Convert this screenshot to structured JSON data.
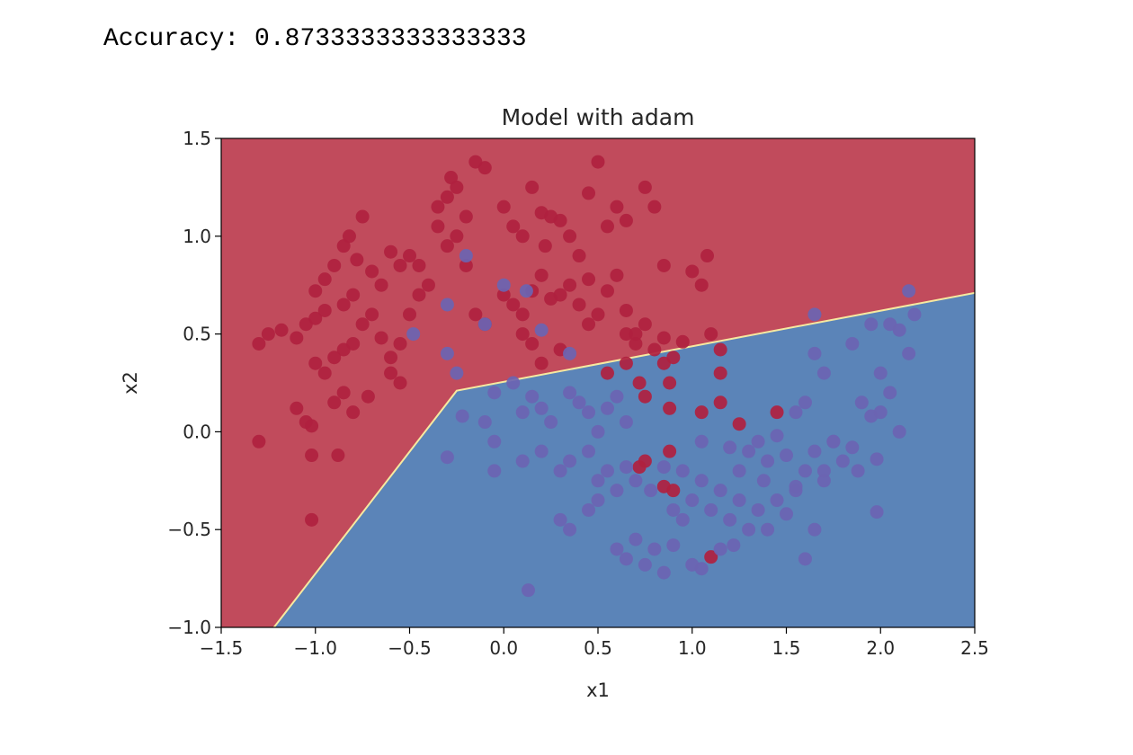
{
  "output": {
    "accuracy_label": "Accuracy:",
    "accuracy_value": "0.8733333333333333"
  },
  "colors": {
    "red_region": "#c14b5c",
    "blue_region": "#5b84b8",
    "red_point": "#b0213f",
    "blue_point": "#6b64b2",
    "boundary": "#f6e9a0"
  },
  "chart_data": {
    "type": "scatter",
    "title": "Model with adam",
    "xlabel": "x1",
    "ylabel": "x2",
    "xlim": [
      -1.5,
      2.5
    ],
    "ylim": [
      -1.0,
      1.5
    ],
    "xticks": [
      "−1.5",
      "−1.0",
      "−0.5",
      "0.0",
      "0.5",
      "1.0",
      "1.5",
      "2.0",
      "2.5"
    ],
    "yticks": [
      "−1.0",
      "−0.5",
      "0.0",
      "0.5",
      "1.0",
      "1.5"
    ],
    "xtick_values": [
      -1.5,
      -1.0,
      -0.5,
      0.0,
      0.5,
      1.0,
      1.5,
      2.0,
      2.5
    ],
    "ytick_values": [
      -1.0,
      -0.5,
      0.0,
      0.5,
      1.0,
      1.5
    ],
    "grid": false,
    "decision_boundary": [
      [
        -1.22,
        -1.0
      ],
      [
        -0.25,
        0.21
      ],
      [
        2.5,
        0.71
      ]
    ],
    "series": [
      {
        "class": 0,
        "color": "#b0213f",
        "points": [
          [
            -1.3,
            0.45
          ],
          [
            -1.25,
            0.5
          ],
          [
            -1.18,
            0.52
          ],
          [
            -1.1,
            0.48
          ],
          [
            -1.05,
            0.55
          ],
          [
            -1.0,
            0.58
          ],
          [
            -0.95,
            0.62
          ],
          [
            -0.9,
            0.85
          ],
          [
            -0.85,
            0.95
          ],
          [
            -0.82,
            1.0
          ],
          [
            -0.78,
            0.88
          ],
          [
            -0.75,
            1.1
          ],
          [
            -0.7,
            0.82
          ],
          [
            -0.65,
            0.75
          ],
          [
            -0.6,
            0.92
          ],
          [
            -0.55,
            0.85
          ],
          [
            -0.5,
            0.9
          ],
          [
            -0.45,
            0.85
          ],
          [
            -1.0,
            0.35
          ],
          [
            -0.95,
            0.3
          ],
          [
            -0.9,
            0.38
          ],
          [
            -0.85,
            0.42
          ],
          [
            -0.8,
            0.45
          ],
          [
            -0.75,
            0.55
          ],
          [
            -0.7,
            0.6
          ],
          [
            -0.65,
            0.48
          ],
          [
            -0.6,
            0.38
          ],
          [
            -0.55,
            0.45
          ],
          [
            -0.5,
            0.6
          ],
          [
            -0.45,
            0.7
          ],
          [
            -0.9,
            0.15
          ],
          [
            -0.85,
            0.2
          ],
          [
            -0.8,
            0.1
          ],
          [
            -0.72,
            0.18
          ],
          [
            -0.6,
            0.3
          ],
          [
            -0.55,
            0.25
          ],
          [
            -1.1,
            0.12
          ],
          [
            -1.05,
            0.05
          ],
          [
            -1.02,
            0.03
          ],
          [
            -1.02,
            -0.12
          ],
          [
            -0.88,
            -0.12
          ],
          [
            -1.3,
            -0.05
          ],
          [
            -1.02,
            -0.45
          ],
          [
            -1.0,
            0.72
          ],
          [
            -0.95,
            0.78
          ],
          [
            -0.85,
            0.65
          ],
          [
            -0.8,
            0.7
          ],
          [
            -0.35,
            1.15
          ],
          [
            -0.3,
            1.2
          ],
          [
            -0.28,
            1.3
          ],
          [
            -0.25,
            1.25
          ],
          [
            -0.2,
            1.1
          ],
          [
            -0.15,
            1.38
          ],
          [
            -0.1,
            1.35
          ],
          [
            0.0,
            1.15
          ],
          [
            0.05,
            1.05
          ],
          [
            0.1,
            1.0
          ],
          [
            0.15,
            1.25
          ],
          [
            0.2,
            1.12
          ],
          [
            0.25,
            1.1
          ],
          [
            0.3,
            1.08
          ],
          [
            0.35,
            1.0
          ],
          [
            0.4,
            0.9
          ],
          [
            0.45,
            1.22
          ],
          [
            0.5,
            1.38
          ],
          [
            0.55,
            1.05
          ],
          [
            0.6,
            1.15
          ],
          [
            0.65,
            1.08
          ],
          [
            0.75,
            1.25
          ],
          [
            0.8,
            1.15
          ],
          [
            0.85,
            0.85
          ],
          [
            -0.4,
            0.75
          ],
          [
            -0.3,
            0.95
          ],
          [
            -0.2,
            0.85
          ],
          [
            -0.15,
            0.6
          ],
          [
            -0.1,
            0.55
          ],
          [
            0.0,
            0.7
          ],
          [
            0.05,
            0.65
          ],
          [
            0.1,
            0.6
          ],
          [
            0.15,
            0.72
          ],
          [
            0.2,
            0.8
          ],
          [
            0.25,
            0.68
          ],
          [
            0.3,
            0.7
          ],
          [
            0.35,
            0.75
          ],
          [
            0.4,
            0.65
          ],
          [
            0.45,
            0.55
          ],
          [
            0.5,
            0.6
          ],
          [
            0.55,
            0.72
          ],
          [
            0.6,
            0.8
          ],
          [
            0.65,
            0.5
          ],
          [
            0.7,
            0.45
          ],
          [
            0.75,
            0.55
          ],
          [
            0.8,
            0.42
          ],
          [
            0.85,
            0.48
          ],
          [
            0.9,
            0.38
          ],
          [
            0.95,
            0.46
          ],
          [
            1.0,
            0.82
          ],
          [
            1.05,
            0.75
          ],
          [
            1.08,
            0.9
          ],
          [
            1.1,
            0.5
          ],
          [
            1.15,
            0.42
          ],
          [
            0.1,
            0.5
          ],
          [
            0.15,
            0.45
          ],
          [
            0.2,
            0.35
          ],
          [
            0.3,
            0.42
          ],
          [
            0.65,
            0.62
          ],
          [
            0.7,
            0.5
          ],
          [
            0.55,
            0.3
          ],
          [
            0.65,
            0.35
          ],
          [
            0.72,
            0.25
          ],
          [
            0.75,
            0.18
          ],
          [
            0.85,
            0.35
          ],
          [
            0.88,
            0.25
          ],
          [
            0.88,
            0.12
          ],
          [
            1.05,
            0.1
          ],
          [
            1.15,
            0.15
          ],
          [
            1.15,
            0.3
          ],
          [
            1.25,
            0.04
          ],
          [
            1.45,
            0.1
          ],
          [
            0.72,
            -0.18
          ],
          [
            0.75,
            -0.15
          ],
          [
            0.88,
            -0.1
          ],
          [
            0.85,
            -0.28
          ],
          [
            0.9,
            -0.3
          ],
          [
            1.1,
            -0.64
          ],
          [
            -0.25,
            1.0
          ],
          [
            -0.35,
            1.05
          ],
          [
            0.22,
            0.95
          ],
          [
            0.45,
            0.78
          ]
        ]
      },
      {
        "class": 1,
        "color": "#6b64b2",
        "points": [
          [
            -0.2,
            0.9
          ],
          [
            -0.48,
            0.5
          ],
          [
            -0.3,
            0.65
          ],
          [
            -0.3,
            0.4
          ],
          [
            -0.1,
            0.55
          ],
          [
            0.0,
            0.75
          ],
          [
            0.12,
            0.72
          ],
          [
            0.2,
            0.52
          ],
          [
            0.35,
            0.4
          ],
          [
            1.65,
            0.6
          ],
          [
            2.15,
            0.72
          ],
          [
            -0.25,
            0.3
          ],
          [
            -0.22,
            0.08
          ],
          [
            -0.1,
            0.05
          ],
          [
            -0.05,
            0.2
          ],
          [
            0.05,
            0.25
          ],
          [
            0.1,
            0.1
          ],
          [
            0.15,
            0.18
          ],
          [
            0.2,
            0.12
          ],
          [
            0.25,
            0.05
          ],
          [
            0.35,
            0.2
          ],
          [
            0.4,
            0.15
          ],
          [
            0.45,
            0.1
          ],
          [
            0.5,
            0.0
          ],
          [
            0.55,
            0.12
          ],
          [
            0.6,
            0.18
          ],
          [
            0.65,
            0.05
          ],
          [
            -0.3,
            -0.13
          ],
          [
            -0.05,
            -0.05
          ],
          [
            -0.05,
            -0.2
          ],
          [
            0.1,
            -0.15
          ],
          [
            0.2,
            -0.1
          ],
          [
            0.3,
            -0.2
          ],
          [
            0.35,
            -0.15
          ],
          [
            0.45,
            -0.1
          ],
          [
            0.5,
            -0.25
          ],
          [
            0.55,
            -0.2
          ],
          [
            0.6,
            -0.3
          ],
          [
            0.65,
            -0.18
          ],
          [
            0.7,
            -0.25
          ],
          [
            0.78,
            -0.3
          ],
          [
            0.85,
            -0.18
          ],
          [
            0.9,
            -0.4
          ],
          [
            0.95,
            -0.45
          ],
          [
            1.0,
            -0.35
          ],
          [
            1.05,
            -0.25
          ],
          [
            1.1,
            -0.4
          ],
          [
            1.15,
            -0.3
          ],
          [
            1.2,
            -0.45
          ],
          [
            1.25,
            -0.35
          ],
          [
            1.3,
            -0.5
          ],
          [
            1.35,
            -0.4
          ],
          [
            1.4,
            -0.5
          ],
          [
            1.45,
            -0.35
          ],
          [
            1.5,
            -0.42
          ],
          [
            1.55,
            -0.3
          ],
          [
            1.6,
            -0.2
          ],
          [
            1.65,
            -0.5
          ],
          [
            1.7,
            -0.25
          ],
          [
            0.3,
            -0.45
          ],
          [
            0.35,
            -0.5
          ],
          [
            0.45,
            -0.4
          ],
          [
            0.5,
            -0.35
          ],
          [
            0.6,
            -0.6
          ],
          [
            0.65,
            -0.65
          ],
          [
            0.7,
            -0.55
          ],
          [
            0.75,
            -0.68
          ],
          [
            0.8,
            -0.6
          ],
          [
            0.85,
            -0.72
          ],
          [
            0.9,
            -0.58
          ],
          [
            1.0,
            -0.68
          ],
          [
            1.05,
            -0.7
          ],
          [
            1.15,
            -0.6
          ],
          [
            1.22,
            -0.58
          ],
          [
            1.6,
            -0.65
          ],
          [
            0.13,
            -0.81
          ],
          [
            1.2,
            -0.08
          ],
          [
            1.3,
            -0.1
          ],
          [
            1.35,
            -0.05
          ],
          [
            1.4,
            -0.15
          ],
          [
            1.45,
            -0.02
          ],
          [
            1.5,
            -0.12
          ],
          [
            1.55,
            0.1
          ],
          [
            1.6,
            0.15
          ],
          [
            1.65,
            -0.1
          ],
          [
            1.7,
            -0.2
          ],
          [
            1.75,
            -0.05
          ],
          [
            1.8,
            -0.15
          ],
          [
            1.85,
            -0.08
          ],
          [
            1.9,
            0.15
          ],
          [
            1.95,
            0.08
          ],
          [
            2.0,
            0.1
          ],
          [
            2.05,
            0.2
          ],
          [
            2.1,
            0.0
          ],
          [
            1.65,
            0.4
          ],
          [
            1.7,
            0.3
          ],
          [
            1.85,
            0.45
          ],
          [
            1.95,
            0.55
          ],
          [
            2.0,
            0.3
          ],
          [
            2.05,
            0.55
          ],
          [
            2.1,
            0.52
          ],
          [
            2.15,
            0.4
          ],
          [
            2.18,
            0.6
          ],
          [
            1.98,
            -0.14
          ],
          [
            1.88,
            -0.2
          ],
          [
            1.98,
            -0.41
          ],
          [
            1.75,
            -0.05
          ],
          [
            1.55,
            -0.28
          ],
          [
            1.38,
            -0.25
          ],
          [
            1.25,
            -0.2
          ],
          [
            1.05,
            -0.05
          ],
          [
            0.95,
            -0.2
          ]
        ]
      }
    ]
  }
}
